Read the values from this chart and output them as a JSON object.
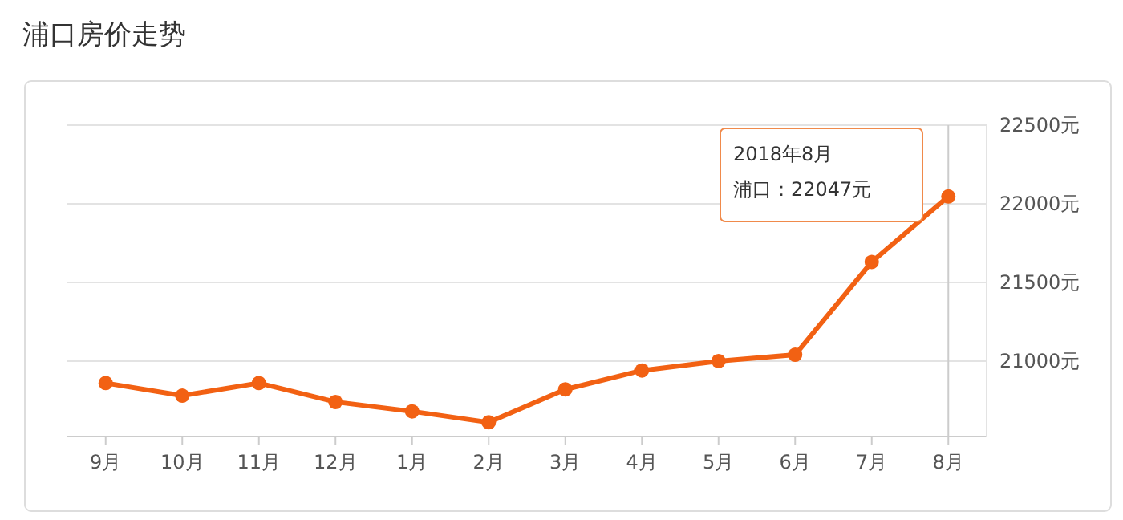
{
  "chart_data": {
    "type": "line",
    "title": "浦口房价走势",
    "categories": [
      "9月",
      "10月",
      "11月",
      "12月",
      "1月",
      "2月",
      "3月",
      "4月",
      "5月",
      "6月",
      "7月",
      "8月"
    ],
    "series": [
      {
        "color": "#f26113",
        "values": [
          20860,
          20780,
          20860,
          20740,
          20680,
          20610,
          20820,
          20940,
          21000,
          21040,
          21630,
          22047
        ]
      }
    ],
    "ylim": [
      20520,
      22500
    ],
    "yticks": [
      {
        "value": 21000,
        "label": "21000元"
      },
      {
        "value": 21500,
        "label": "21500元"
      },
      {
        "value": 22000,
        "label": "22000元"
      },
      {
        "value": 22500,
        "label": "22500元"
      }
    ],
    "grid": "y",
    "marker": "circle",
    "line_style": "solid",
    "ref_lines": [
      {
        "axis": "x",
        "value": "8月",
        "color": "#cccccc"
      }
    ],
    "annotations": [
      "2018年8月",
      "浦口：22047元"
    ]
  }
}
